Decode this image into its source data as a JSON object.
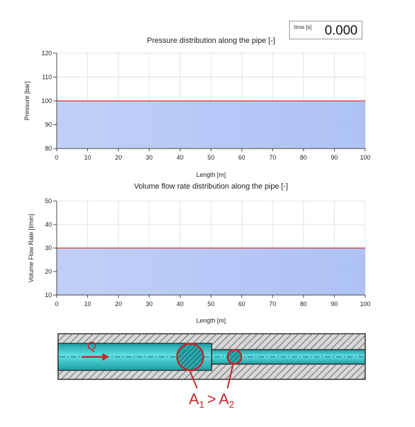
{
  "time_display": {
    "label": "time [s]",
    "value": "0.000"
  },
  "chart_data": [
    {
      "type": "area",
      "title": "Pressure distribution along the pipe [-]",
      "xlabel": "Length [m]",
      "ylabel": "Pressure [bar]",
      "xlim": [
        0,
        100
      ],
      "ylim": [
        80,
        120
      ],
      "x_ticks": [
        0,
        10,
        20,
        30,
        40,
        50,
        60,
        70,
        80,
        90,
        100
      ],
      "y_ticks": [
        80,
        90,
        100,
        110,
        120
      ],
      "grid": true,
      "x": [
        0,
        100
      ],
      "y": [
        100,
        100
      ],
      "line_color": "#e03030",
      "fill_color": "#a9bff5"
    },
    {
      "type": "area",
      "title": "Volume flow rate distribution along the pipe [-]",
      "xlabel": "Length [m]",
      "ylabel": "Volume Flow Rate [l/min]",
      "xlim": [
        0,
        100
      ],
      "ylim": [
        10,
        50
      ],
      "x_ticks": [
        0,
        10,
        20,
        30,
        40,
        50,
        60,
        70,
        80,
        90,
        100
      ],
      "y_ticks": [
        10,
        20,
        30,
        40,
        50
      ],
      "grid": true,
      "x": [
        0,
        100
      ],
      "y": [
        30,
        30
      ],
      "line_color": "#e03030",
      "fill_color": "#a9bff5"
    }
  ],
  "pipe_diagram": {
    "flow_label": "Q",
    "area_label_1": "A",
    "area_sub_1": "1",
    "relation": ">",
    "area_label_2": "A",
    "area_sub_2": "2",
    "pipe_color": "#33c4c8",
    "label_color": "#c0282e"
  }
}
